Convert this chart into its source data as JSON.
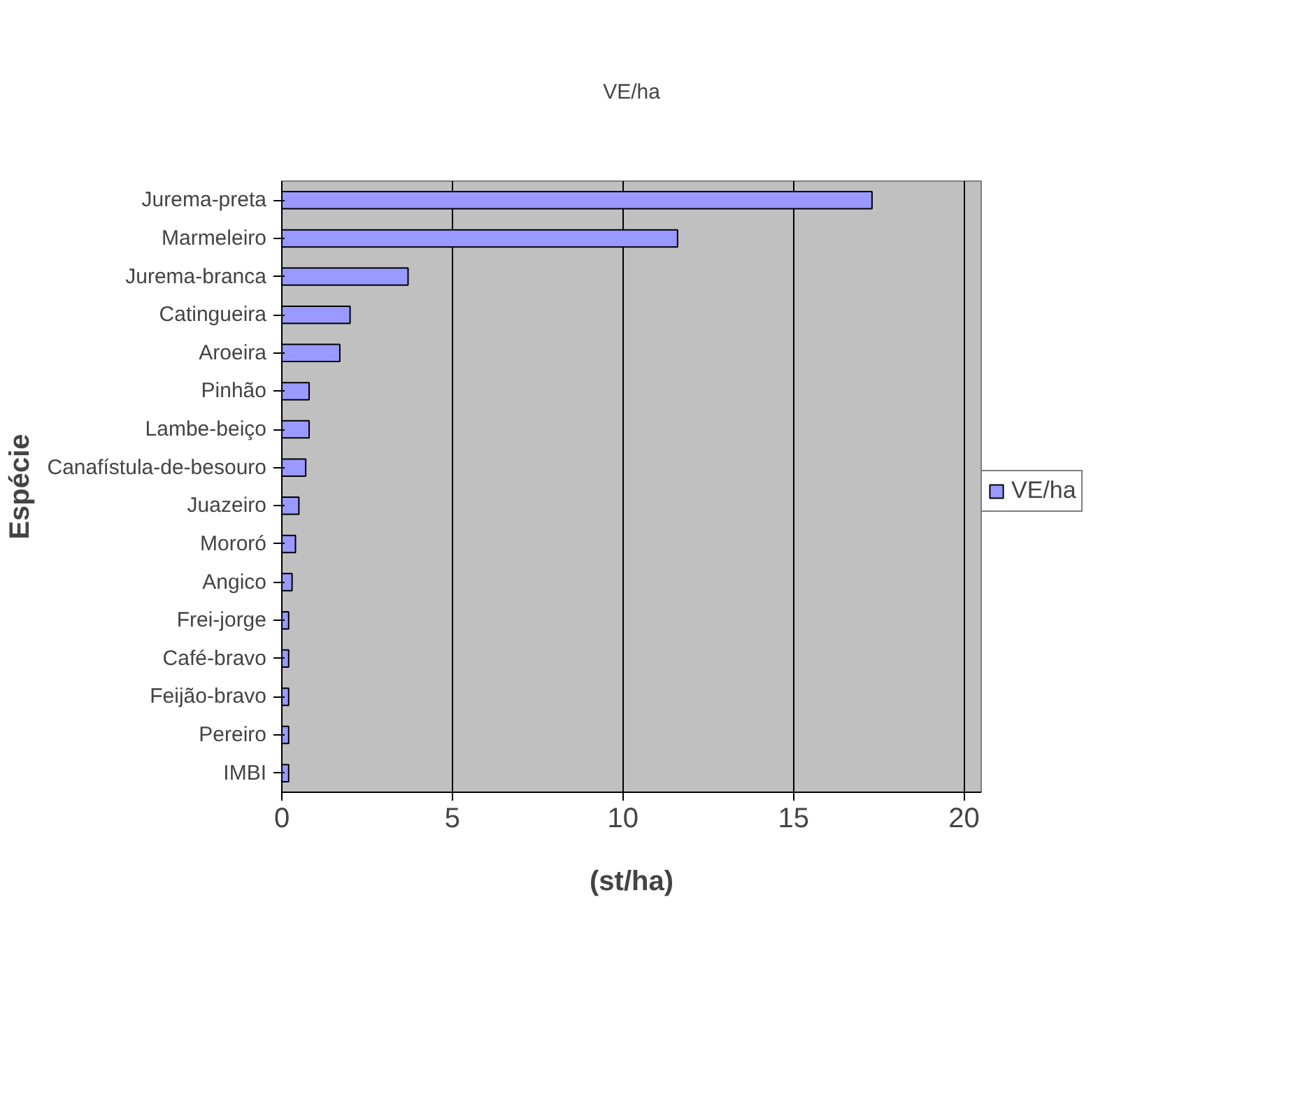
{
  "chart_data": {
    "type": "bar",
    "orientation": "horizontal",
    "title": "VE/ha",
    "xlabel": "(st/ha)",
    "ylabel": "Espécie",
    "categories": [
      "Jurema-preta",
      "Marmeleiro",
      "Jurema-branca",
      "Catingueira",
      "Aroeira",
      "Pinhão",
      "Lambe-beiço",
      "Canafístula-de-besouro",
      "Juazeiro",
      "Mororó",
      "Angico",
      "Frei-jorge",
      "Café-bravo",
      "Feijão-bravo",
      "Pereiro",
      "IMBI"
    ],
    "series": [
      {
        "name": "VE/ha",
        "color": "#9999ff",
        "values": [
          17.3,
          11.6,
          3.7,
          2.0,
          1.7,
          0.8,
          0.8,
          0.7,
          0.5,
          0.4,
          0.3,
          0.2,
          0.2,
          0.2,
          0.2,
          0.2
        ]
      }
    ],
    "xlim": [
      0,
      20.5
    ],
    "xticks": [
      0,
      5,
      10,
      15,
      20
    ],
    "grid": "x",
    "legend": "right"
  }
}
